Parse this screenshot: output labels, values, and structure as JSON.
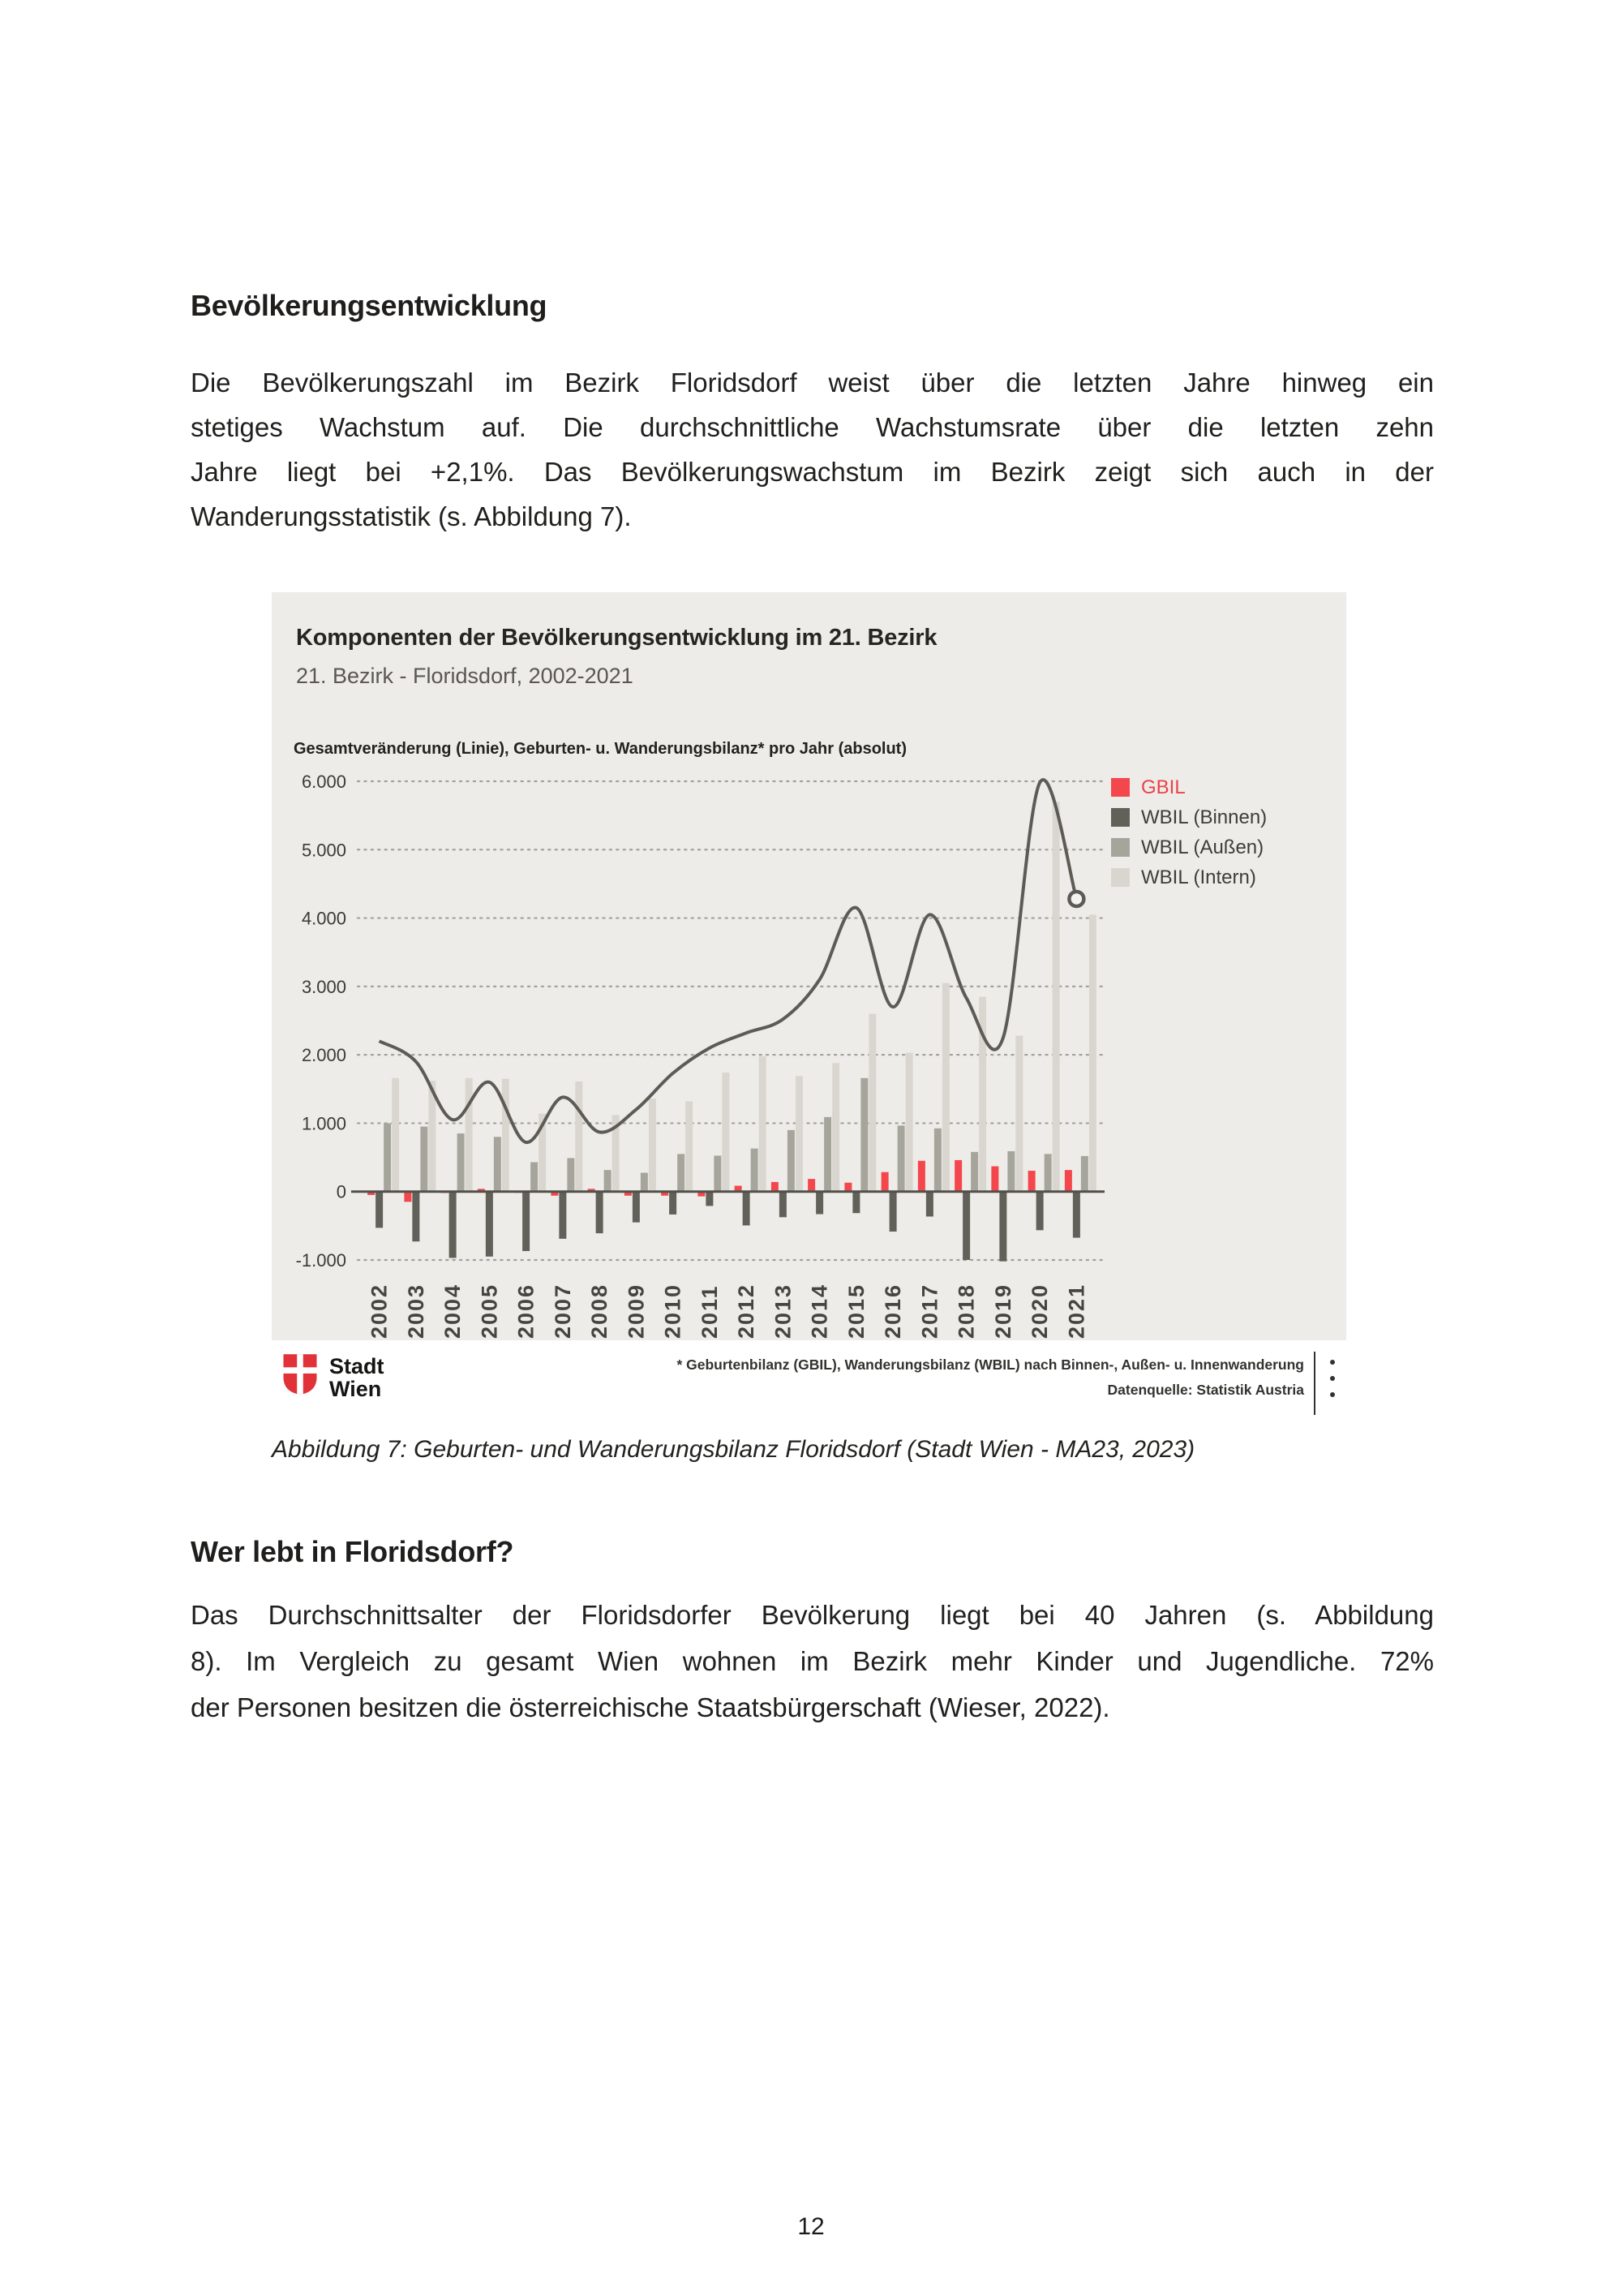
{
  "page": {
    "number": "12"
  },
  "section1": {
    "heading": "Bevölkerungsentwicklung",
    "lines": [
      "Die Bevölkerungszahl im Bezirk Floridsdorf weist über die letzten Jahre hinweg ein",
      "stetiges Wachstum auf. Die durchschnittliche Wachstumsrate über die letzten zehn",
      "Jahre liegt bei +2,1%. Das Bevölkerungswachstum im Bezirk zeigt sich auch in der",
      "Wanderungsstatistik (s. Abbildung 7)."
    ]
  },
  "figure": {
    "title": "Komponenten der Bevölkerungsentwicklung im 21. Bezirk",
    "subtitle": "21. Bezirk - Floridsdorf, 2002-2021",
    "axis_note": "Gesamtveränderung (Linie), Geburten- u. Wanderungsbilanz* pro Jahr (absolut)",
    "footnote_line1": "* Geburtenbilanz (GBIL), Wanderungsbilanz (WBIL) nach Binnen-, Außen- u. Innenwanderung",
    "footnote_line2": "Datenquelle: Statistik Austria",
    "logo_line1": "Stadt",
    "logo_line2": "Wien",
    "caption": "Abbildung 7: Geburten- und Wanderungsbilanz Floridsdorf (Stadt Wien - MA23, 2023)"
  },
  "chart_data": {
    "type": "bar+line combo",
    "title": "Komponenten der Bevölkerungsentwicklung im 21. Bezirk",
    "subtitle": "21. Bezirk - Floridsdorf, 2002-2021",
    "ylabel": "Gesamtveränderung (Linie), Geburten- u. Wanderungsbilanz* pro Jahr (absolut)",
    "categories": [
      "2002",
      "2003",
      "2004",
      "2005",
      "2006",
      "2007",
      "2008",
      "2009",
      "2010",
      "2011",
      "2012",
      "2013",
      "2014",
      "2015",
      "2016",
      "2017",
      "2018",
      "2019",
      "2020",
      "2021"
    ],
    "ylim": [
      -1000,
      6000
    ],
    "grid": "horizontal-dotted",
    "legend_position": "top-right",
    "x_tick_rotation": 90,
    "line_end_marker": "open-circle",
    "background": "#eeece9",
    "yticks": [
      {
        "value": 6000,
        "label": "6.000"
      },
      {
        "value": 5000,
        "label": "5.000"
      },
      {
        "value": 4000,
        "label": "4.000"
      },
      {
        "value": 3000,
        "label": "3.000"
      },
      {
        "value": 2000,
        "label": "2.000"
      },
      {
        "value": 1000,
        "label": "1.000"
      },
      {
        "value": 0,
        "label": "0"
      },
      {
        "value": -1000,
        "label": "-1.000"
      }
    ],
    "series": [
      {
        "key": "gbil",
        "name": "GBIL",
        "type": "bar",
        "color": "#f3474d",
        "values": [
          -50,
          -150,
          -20,
          40,
          -10,
          -60,
          40,
          -60,
          -60,
          -70,
          85,
          140,
          185,
          130,
          285,
          450,
          460,
          370,
          305,
          315
        ]
      },
      {
        "key": "wbil_binnen",
        "name": "WBIL (Binnen)",
        "type": "bar",
        "color": "#61615a",
        "values": [
          -530,
          -730,
          -970,
          -950,
          -870,
          -690,
          -610,
          -450,
          -335,
          -210,
          -495,
          -375,
          -330,
          -315,
          -585,
          -365,
          -1000,
          -1020,
          -565,
          -675
        ]
      },
      {
        "key": "wbil_aussen",
        "name": "WBIL (Außen)",
        "type": "bar",
        "color": "#a6a59c",
        "values": [
          1000,
          950,
          850,
          800,
          430,
          490,
          315,
          275,
          550,
          525,
          630,
          900,
          1090,
          1660,
          965,
          925,
          580,
          590,
          550,
          520
        ]
      },
      {
        "key": "wbil_intern",
        "name": "WBIL (Intern)",
        "type": "bar",
        "color": "#d9d6d0",
        "values": [
          1660,
          1620,
          1660,
          1650,
          1140,
          1610,
          1120,
          1360,
          1320,
          1740,
          1980,
          1690,
          1880,
          2600,
          2030,
          3050,
          2850,
          2280,
          5700,
          4050
        ]
      },
      {
        "key": "gesamt",
        "name": "Gesamtveränderung (Linie)",
        "type": "line",
        "color": "#5c5b55",
        "values": [
          2200,
          1900,
          1050,
          1600,
          720,
          1380,
          870,
          1200,
          1730,
          2100,
          2320,
          2520,
          3100,
          4150,
          2700,
          4050,
          2830,
          2250,
          5980,
          4280
        ]
      }
    ],
    "legend": [
      {
        "label": "GBIL",
        "swatch_color": "#f3474d",
        "label_color": "#ea4249"
      },
      {
        "label": "WBIL (Binnen)",
        "swatch_color": "#61615a",
        "label_color": "#3e3d39"
      },
      {
        "label": "WBIL (Außen)",
        "swatch_color": "#a6a59c",
        "label_color": "#3e3d39"
      },
      {
        "label": "WBIL (Intern)",
        "swatch_color": "#d9d6d0",
        "label_color": "#3e3d39"
      }
    ],
    "colors": {
      "axis_line": "#51504a",
      "grid_dots": "#a3a19a",
      "tick_text": "#3b3a37",
      "year_text": "#454440"
    }
  },
  "section2": {
    "heading": "Wer lebt in Floridsdorf?",
    "lines": [
      "Das Durchschnittsalter der Floridsdorfer Bevölkerung liegt bei 40 Jahren (s. Abbildung",
      "8). Im Vergleich zu gesamt Wien wohnen im Bezirk mehr Kinder und Jugendliche. 72%",
      "der Personen besitzen die österreichische Staatsbürgerschaft (Wieser, 2022)."
    ]
  }
}
